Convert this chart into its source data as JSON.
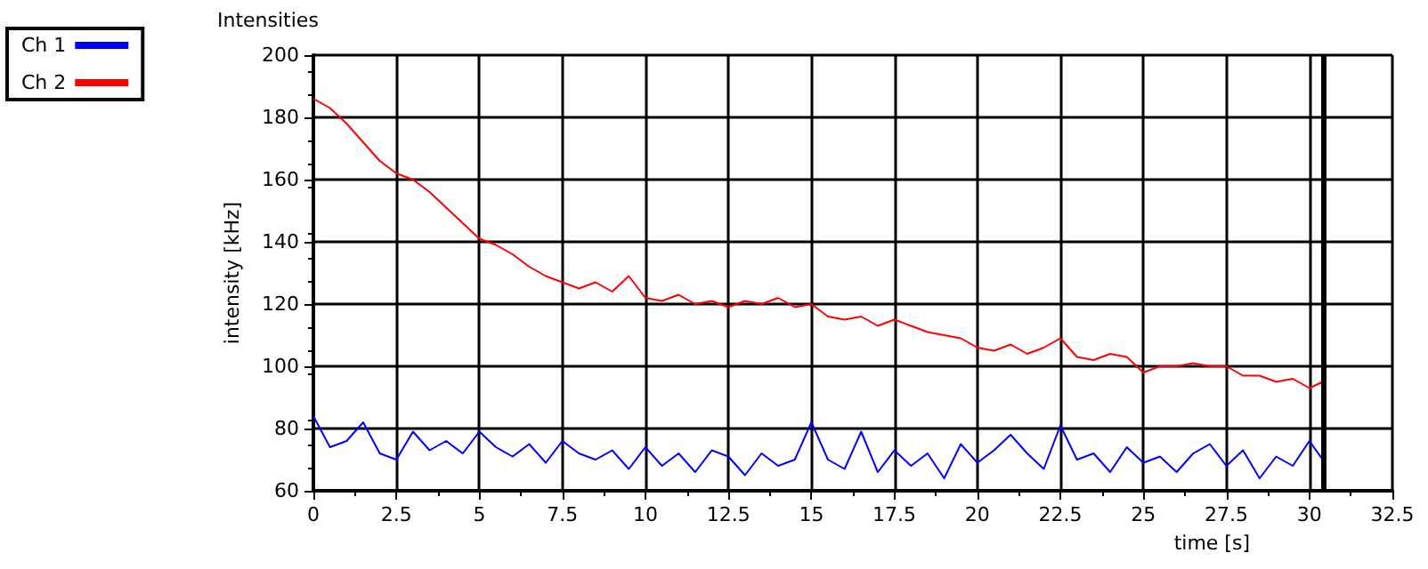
{
  "chart_data": {
    "type": "line",
    "title": "Intensities",
    "xlabel": "time [s]",
    "ylabel": "intensity [kHz]",
    "x": [
      0,
      0.5,
      1,
      1.5,
      2,
      2.5,
      3,
      3.5,
      4,
      4.5,
      5,
      5.5,
      6,
      6.5,
      7,
      7.5,
      8,
      8.5,
      9,
      9.5,
      10,
      10.5,
      11,
      11.5,
      12,
      12.5,
      13,
      13.5,
      14,
      14.5,
      15,
      15.5,
      16,
      16.5,
      17,
      17.5,
      18,
      18.5,
      19,
      19.5,
      20,
      20.5,
      21,
      21.5,
      22,
      22.5,
      23,
      23.5,
      24,
      24.5,
      25,
      25.5,
      26,
      26.5,
      27,
      27.5,
      28,
      28.5,
      29,
      29.5,
      30,
      30.4
    ],
    "series": [
      {
        "name": "Ch 1",
        "color": "#0000ff",
        "values": [
          84,
          74,
          76,
          82,
          72,
          70,
          79,
          73,
          76,
          72,
          79,
          74,
          71,
          75,
          69,
          76,
          72,
          70,
          73,
          67,
          74,
          68,
          72,
          66,
          73,
          71,
          65,
          72,
          68,
          70,
          82,
          70,
          67,
          79,
          66,
          73,
          68,
          72,
          64,
          75,
          69,
          73,
          78,
          72,
          67,
          81,
          70,
          72,
          66,
          74,
          69,
          71,
          66,
          72,
          75,
          68,
          73,
          64,
          71,
          68,
          76,
          70
        ]
      },
      {
        "name": "Ch 2",
        "color": "#ff0000",
        "values": [
          186,
          183,
          178,
          172,
          166,
          162,
          160,
          156,
          151,
          146,
          141,
          139,
          136,
          132,
          129,
          127,
          125,
          127,
          124,
          129,
          122,
          121,
          123,
          120,
          121,
          119,
          121,
          120,
          122,
          119,
          120,
          116,
          115,
          116,
          113,
          115,
          113,
          111,
          110,
          109,
          106,
          105,
          107,
          104,
          106,
          109,
          103,
          102,
          104,
          103,
          98,
          100,
          100,
          101,
          100,
          100,
          97,
          97,
          95,
          96,
          93,
          95
        ]
      }
    ],
    "xlim": [
      0,
      32.5
    ],
    "xticks": [
      0,
      2.5,
      5,
      7.5,
      10,
      12.5,
      15,
      17.5,
      20,
      22.5,
      25,
      27.5,
      30,
      32.5
    ],
    "ylim": [
      60,
      200
    ],
    "yticks": [
      60,
      80,
      100,
      120,
      140,
      160,
      180,
      200
    ],
    "ref_lines": [
      {
        "axis": "x",
        "value": 30.4,
        "color": "#000000"
      }
    ],
    "grid": true,
    "legend": "top left",
    "marker": "none",
    "line_style": "solid"
  }
}
